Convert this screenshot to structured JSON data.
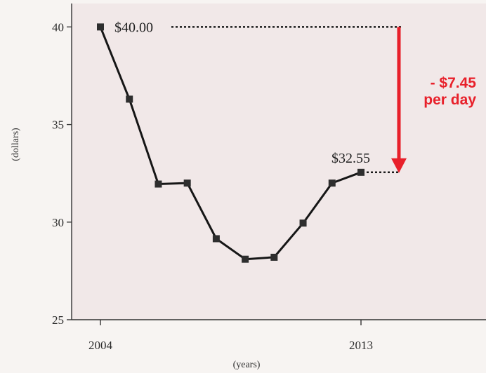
{
  "chart_data": {
    "type": "line",
    "x": [
      2004,
      2005,
      2006,
      2007,
      2008,
      2009,
      2010,
      2011,
      2012,
      2013
    ],
    "series": [
      {
        "values": [
          40.0,
          36.3,
          31.95,
          32.0,
          29.15,
          28.1,
          28.2,
          29.95,
          32.0,
          32.55
        ]
      }
    ],
    "xlabel": "(years)",
    "ylabel": "(dollars)",
    "ylim": [
      25,
      41.2
    ],
    "xlim": [
      2004,
      2013
    ],
    "yticks": [
      25,
      30,
      35,
      40
    ],
    "xticks": [
      {
        "value": 2004,
        "label": "2004"
      },
      {
        "value": 2013,
        "label": "2013"
      }
    ],
    "annotations": {
      "start_label": "$40.00",
      "end_label": "$32.55",
      "change_line1": "- $7.45",
      "change_line2": "per day"
    },
    "colors": {
      "line": "#161616",
      "marker": "#2e2e2e",
      "plot_background": "#f1e8e8",
      "callout": "#e8202a"
    },
    "grid": false,
    "legend": "none"
  }
}
